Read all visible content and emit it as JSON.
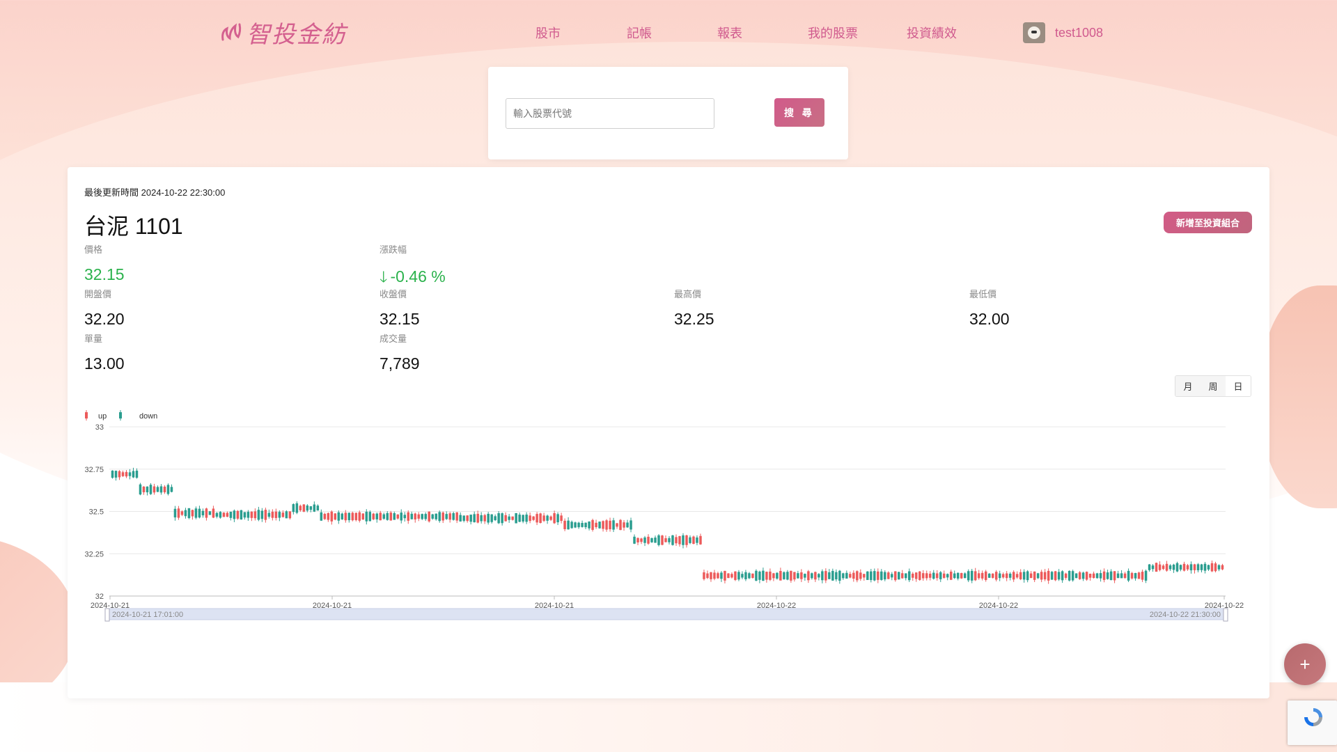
{
  "header": {
    "logo_text": "智投金紡",
    "nav": [
      "股市",
      "記帳",
      "報表",
      "我的股票",
      "投資績效"
    ],
    "username": "test1008"
  },
  "search": {
    "placeholder": "輸入股票代號",
    "value": "",
    "button_label": "搜 尋"
  },
  "stock": {
    "updated_label": "最後更新時間",
    "updated_time": "2024-10-22 22:30:00",
    "name": "台泥",
    "code": "1101",
    "add_button": "新增至投資組合",
    "stats": {
      "price": {
        "label": "價格",
        "value": "32.15"
      },
      "change": {
        "label": "漲跌幅",
        "value": "-0.46 %"
      },
      "open": {
        "label": "開盤價",
        "value": "32.20"
      },
      "close": {
        "label": "收盤價",
        "value": "32.15"
      },
      "high": {
        "label": "最高價",
        "value": "32.25"
      },
      "low": {
        "label": "最低價",
        "value": "32.00"
      },
      "single": {
        "label": "單量",
        "value": "13.00"
      },
      "volume": {
        "label": "成交量",
        "value": "7,789"
      }
    },
    "range_tabs": [
      "月",
      "周",
      "日"
    ],
    "active_range": "日"
  },
  "colors": {
    "up": "#ec5a5a",
    "down": "#2a9d8f",
    "accent": "#d05a8e",
    "green": "#2bb24c"
  },
  "chart_data": {
    "type": "candlestick",
    "legend": [
      "up",
      "down"
    ],
    "legend_position": "top-left",
    "ylim": [
      32,
      33
    ],
    "yticks": [
      "33",
      "32.75",
      "32.5",
      "32.25",
      "32"
    ],
    "xticks": [
      "2024-10-21",
      "2024-10-21",
      "2024-10-21",
      "2024-10-22",
      "2024-10-22",
      "2024-10-22"
    ],
    "zoom_range": [
      "2024-10-21 17:01:00",
      "2024-10-22 21:30:00"
    ],
    "grid": true,
    "segments": [
      {
        "count": 8,
        "open": [
          32.85,
          32.7
        ],
        "close": [
          32.65,
          32.78
        ],
        "level": 32.72
      },
      {
        "count": 10,
        "open": [
          32.6,
          32.7
        ],
        "close": [
          32.62,
          32.66
        ],
        "level": 32.63
      },
      {
        "count": 12,
        "open": [
          32.45,
          32.5
        ],
        "close": [
          32.5,
          32.48
        ],
        "level": 32.49
      },
      {
        "count": 22,
        "open": [
          32.5,
          32.45
        ],
        "close": [
          32.45,
          32.5
        ],
        "level": 32.48
      },
      {
        "count": 8,
        "open": [
          32.5,
          32.55
        ],
        "close": [
          32.55,
          32.52
        ],
        "level": 32.52
      },
      {
        "count": 40,
        "open": [
          32.45,
          32.5
        ],
        "close": [
          32.5,
          32.45
        ],
        "level": 32.47
      },
      {
        "count": 30,
        "open": [
          32.45,
          32.5
        ],
        "close": [
          32.5,
          32.45
        ],
        "level": 32.46
      },
      {
        "count": 20,
        "open": [
          32.4,
          32.45
        ],
        "close": [
          32.45,
          32.4
        ],
        "level": 32.42
      },
      {
        "count": 20,
        "open": [
          32.3,
          32.35
        ],
        "close": [
          32.35,
          32.3
        ],
        "level": 32.33
      },
      {
        "count": 8,
        "open": [
          32.1,
          32.15
        ],
        "close": [
          32.15,
          32.1
        ],
        "level": 32.12
      },
      {
        "count": 50,
        "open": [
          32.1,
          32.15
        ],
        "close": [
          32.15,
          32.1
        ],
        "level": 32.12
      },
      {
        "count": 40,
        "open": [
          32.1,
          32.15
        ],
        "close": [
          32.15,
          32.1
        ],
        "level": 32.12
      },
      {
        "count": 30,
        "open": [
          32.1,
          32.15
        ],
        "close": [
          32.15,
          32.1
        ],
        "level": 32.12
      },
      {
        "count": 22,
        "open": [
          32.15,
          32.2
        ],
        "close": [
          32.2,
          32.15
        ],
        "level": 32.17
      }
    ]
  }
}
